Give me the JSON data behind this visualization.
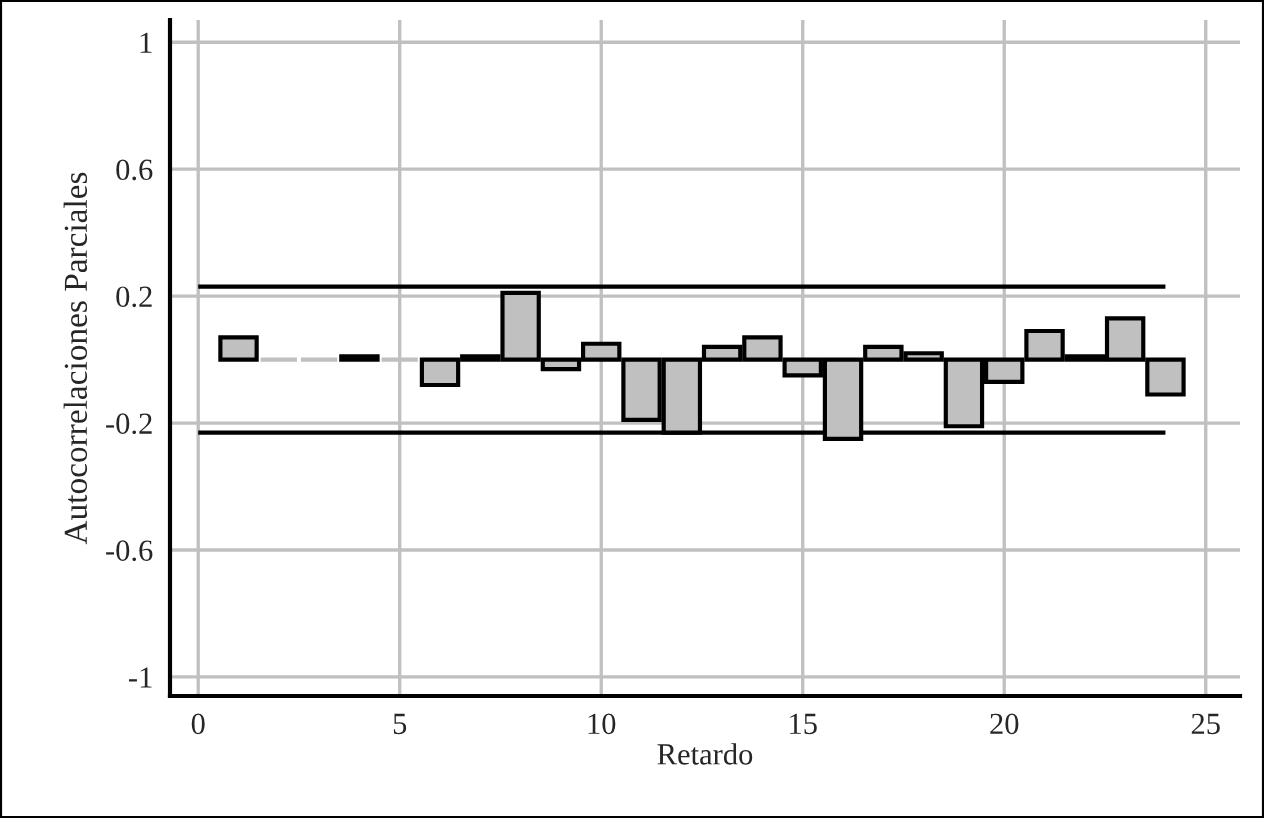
{
  "chart_data": {
    "type": "bar",
    "xlabel": "Retardo",
    "ylabel": "Autocorrelaciones Parciales",
    "x": [
      1,
      2,
      3,
      4,
      5,
      6,
      7,
      8,
      9,
      10,
      11,
      12,
      13,
      14,
      15,
      16,
      17,
      18,
      19,
      20,
      21,
      22,
      23,
      24
    ],
    "values": [
      0.07,
      0,
      0,
      0.01,
      0,
      -0.08,
      0.01,
      0.21,
      -0.03,
      0.05,
      -0.19,
      -0.23,
      0.04,
      0.07,
      -0.05,
      -0.25,
      0.04,
      0.02,
      -0.21,
      -0.07,
      0.09,
      0.01,
      0.13,
      -0.11
    ],
    "color": "#c0c0c0",
    "xlim": [
      -0.7,
      25.85
    ],
    "ylim": [
      -1.06,
      1.07
    ],
    "xticks": [
      0,
      5,
      10,
      15,
      20,
      25
    ],
    "yticks": [
      -1,
      -0.6,
      -0.2,
      0.2,
      0.6,
      1
    ],
    "ref_lines": [
      {
        "axis": "y",
        "value": 0.23,
        "color": "#000000"
      },
      {
        "axis": "y",
        "value": -0.23,
        "color": "#000000"
      }
    ],
    "grid": true
  }
}
